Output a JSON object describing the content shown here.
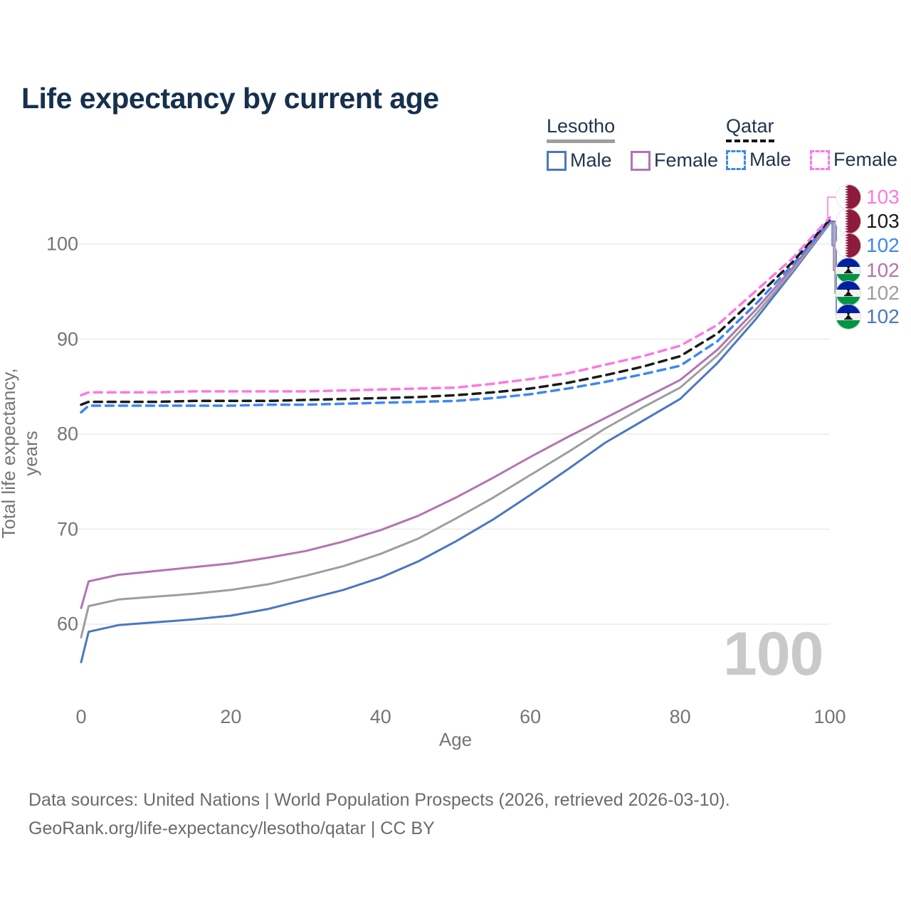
{
  "title": "Life expectancy by current age",
  "legend": {
    "groups": [
      {
        "name": "Lesotho",
        "line_style": "solid",
        "line_color": "#9e9e9e",
        "items": [
          {
            "label": "Male",
            "color": "#4a77c4",
            "dash": false
          },
          {
            "label": "Female",
            "color": "#b573b0",
            "dash": false
          }
        ]
      },
      {
        "name": "Qatar",
        "line_style": "dashed",
        "line_color": "#141414",
        "items": [
          {
            "label": "Male",
            "color": "#3d87f5",
            "dash": true
          },
          {
            "label": "Female",
            "color": "#fb79e3",
            "dash": true
          }
        ]
      }
    ]
  },
  "chart_data": {
    "type": "line",
    "title": "Life expectancy by current age",
    "xlabel": "Age",
    "ylabel": "Total life expectancy, years",
    "xlim": [
      0,
      100
    ],
    "ylim": [
      54,
      104
    ],
    "xticks": [
      0,
      20,
      40,
      60,
      80,
      100
    ],
    "yticks": [
      60,
      70,
      80,
      90,
      100
    ],
    "grid": "horizontal-only",
    "grid_color": "#ebebeb",
    "x": [
      0,
      1,
      5,
      10,
      15,
      20,
      25,
      30,
      35,
      40,
      45,
      50,
      55,
      60,
      65,
      70,
      75,
      80,
      85,
      90,
      95,
      100
    ],
    "series": [
      {
        "name": "Lesotho Male",
        "country": "Lesotho",
        "sex": "male",
        "color": "#4a77c4",
        "dash": false,
        "values": [
          56.0,
          59.2,
          59.9,
          60.2,
          60.5,
          60.9,
          61.6,
          62.6,
          63.6,
          64.9,
          66.6,
          68.7,
          71.0,
          73.6,
          76.3,
          79.1,
          81.4,
          83.7,
          87.5,
          92.0,
          97.0,
          102.2
        ]
      },
      {
        "name": "Lesotho Both sexes",
        "country": "Lesotho",
        "sex": "both",
        "color": "#9e9e9e",
        "dash": false,
        "values": [
          58.6,
          61.9,
          62.6,
          62.9,
          63.2,
          63.6,
          64.2,
          65.1,
          66.1,
          67.4,
          69.0,
          71.1,
          73.3,
          75.7,
          78.1,
          80.6,
          82.8,
          84.9,
          88.3,
          92.5,
          97.2,
          102.3
        ]
      },
      {
        "name": "Lesotho Female",
        "country": "Lesotho",
        "sex": "female",
        "color": "#b573b0",
        "dash": false,
        "values": [
          61.7,
          64.5,
          65.2,
          65.6,
          66.0,
          66.4,
          67.0,
          67.7,
          68.7,
          69.9,
          71.4,
          73.3,
          75.4,
          77.6,
          79.7,
          81.7,
          83.7,
          85.7,
          88.9,
          93.0,
          97.5,
          102.4
        ]
      },
      {
        "name": "Qatar Male",
        "country": "Qatar",
        "sex": "male",
        "color": "#3d87f5",
        "dash": true,
        "values": [
          82.3,
          83.0,
          83.0,
          83.0,
          83.0,
          83.0,
          83.1,
          83.1,
          83.2,
          83.3,
          83.4,
          83.5,
          83.8,
          84.2,
          84.8,
          85.5,
          86.3,
          87.2,
          89.8,
          93.6,
          97.8,
          102.45
        ]
      },
      {
        "name": "Qatar Both sexes",
        "country": "Qatar",
        "sex": "both",
        "color": "#1a1a1a",
        "dash": true,
        "values": [
          83.1,
          83.4,
          83.4,
          83.4,
          83.5,
          83.5,
          83.5,
          83.6,
          83.7,
          83.8,
          83.9,
          84.1,
          84.4,
          84.8,
          85.4,
          86.2,
          87.1,
          88.2,
          90.6,
          94.3,
          98.1,
          102.6
        ]
      },
      {
        "name": "Qatar Female",
        "country": "Qatar",
        "sex": "female",
        "color": "#fb79e3",
        "dash": true,
        "values": [
          84.1,
          84.4,
          84.4,
          84.4,
          84.5,
          84.5,
          84.5,
          84.5,
          84.6,
          84.7,
          84.8,
          84.9,
          85.3,
          85.8,
          86.4,
          87.3,
          88.2,
          89.3,
          91.5,
          95.0,
          98.5,
          102.8
        ]
      }
    ]
  },
  "end_labels": [
    {
      "country": "Qatar",
      "series": "Qatar Female",
      "value": "103",
      "color": "#fb79e3"
    },
    {
      "country": "Qatar",
      "series": "Qatar Both sexes",
      "value": "103",
      "color": "#1a1a1a"
    },
    {
      "country": "Qatar",
      "series": "Qatar Male",
      "value": "102",
      "color": "#3d87f5"
    },
    {
      "country": "Lesotho",
      "series": "Lesotho Female",
      "value": "102",
      "color": "#b573b0"
    },
    {
      "country": "Lesotho",
      "series": "Lesotho Both sexes",
      "value": "102",
      "color": "#9e9e9e"
    },
    {
      "country": "Lesotho",
      "series": "Lesotho Male",
      "value": "102",
      "color": "#4a77c4"
    }
  ],
  "watermark": "100",
  "footer": {
    "line1": "Data sources: United Nations | World Population Prospects (2026, retrieved 2026-03-10).",
    "line2": "GeoRank.org/life-expectancy/lesotho/qatar | CC BY"
  },
  "colors": {
    "title_text": "#16304d",
    "axis_text": "#757575",
    "grid": "#ebebeb",
    "watermark": "#c9c9c9",
    "qatar_flag_maroon": "#8d1b3d",
    "lesotho_flag_blue": "#00209f",
    "lesotho_flag_green": "#009543"
  }
}
